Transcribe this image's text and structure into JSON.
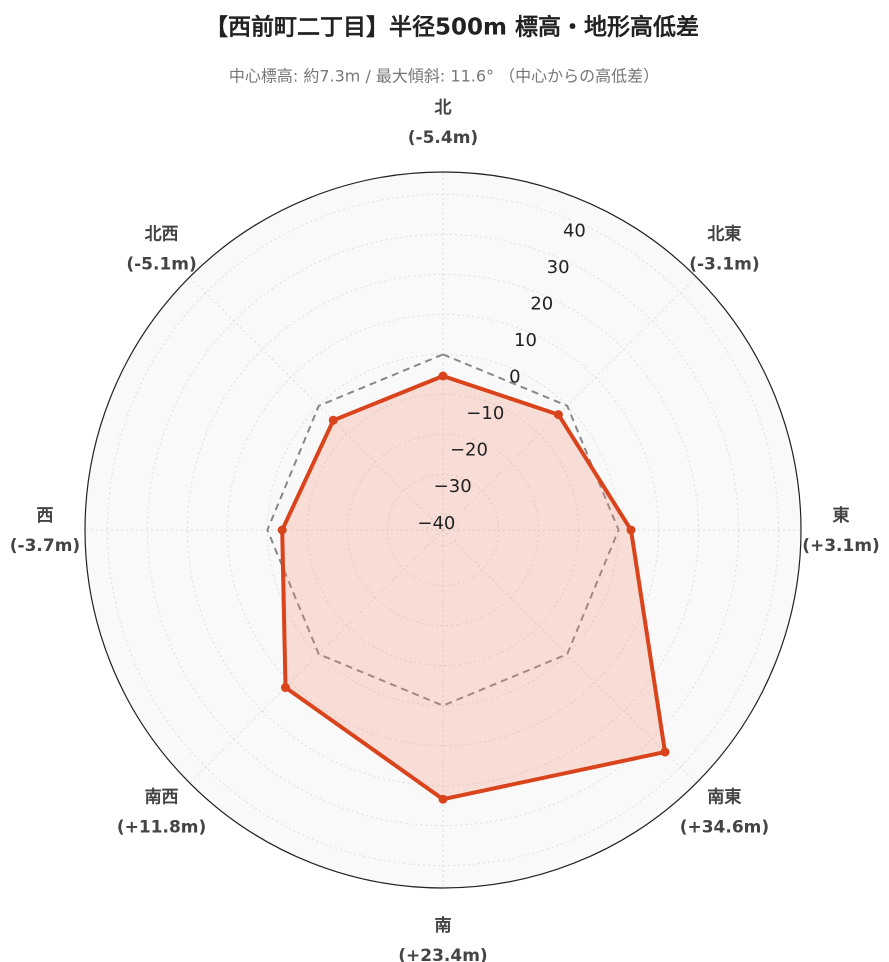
{
  "chart_data": {
    "type": "radar",
    "title": "【西前町二丁目】半径500m 標高・地形高低差",
    "subtitle": "中心標高: 約7.3m / 最大傾斜: 11.6° （中心からの高低差）",
    "categories": [
      "北",
      "北東",
      "東",
      "南東",
      "南",
      "南西",
      "西",
      "北西"
    ],
    "series": [
      {
        "color": "#888888",
        "dash": true,
        "values": [
          0,
          0,
          0,
          0,
          0,
          0,
          0,
          0
        ]
      },
      {
        "color": "#d9441c",
        "fill": "rgba(245,140,110,0.25)",
        "values": [
          -5.4,
          -3.1,
          3.1,
          34.6,
          23.4,
          11.8,
          -3.7,
          -5.1
        ],
        "value_labels": [
          "(-5.4m)",
          "(-3.1m)",
          "(+3.1m)",
          "(+34.6m)",
          "(+23.4m)",
          "(+11.8m)",
          "(-3.7m)",
          "(-5.1m)"
        ]
      }
    ],
    "ylim": [
      -43.9,
      45.6
    ],
    "yticks": [
      {
        "value": -40,
        "label": "−40"
      },
      {
        "value": -30,
        "label": "−30"
      },
      {
        "value": -20,
        "label": "−20"
      },
      {
        "value": -10,
        "label": "−10"
      },
      0,
      10,
      20,
      30,
      40
    ],
    "grid": true
  }
}
